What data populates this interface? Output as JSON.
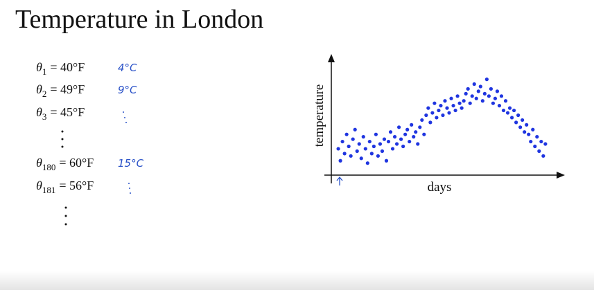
{
  "header": {
    "title": "Temperature in London"
  },
  "equations": [
    {
      "symbol": "θ",
      "subscript": "1",
      "expression": "= 40°F",
      "note": "4°C"
    },
    {
      "symbol": "θ",
      "subscript": "2",
      "expression": "= 49°F",
      "note": "9°C"
    },
    {
      "symbol": "θ",
      "subscript": "3",
      "expression": "= 45°F"
    },
    {
      "symbol": "θ",
      "subscript": "180",
      "expression": "= 60°F",
      "note": "15°C"
    },
    {
      "symbol": "θ",
      "subscript": "181",
      "expression": "= 56°F"
    }
  ],
  "chart_data": {
    "type": "scatter",
    "x_label": "days",
    "y_label": "temperature",
    "color": "#1f35e0",
    "xlim": [
      0,
      330
    ],
    "ylim": [
      30,
      80
    ],
    "x": [
      10,
      13,
      16,
      19,
      22,
      25,
      28,
      31,
      34,
      37,
      40,
      43,
      46,
      49,
      52,
      55,
      58,
      61,
      64,
      67,
      70,
      73,
      76,
      79,
      82,
      85,
      88,
      91,
      94,
      97,
      100,
      103,
      106,
      109,
      112,
      115,
      118,
      121,
      124,
      127,
      130,
      133,
      136,
      139,
      142,
      145,
      148,
      151,
      154,
      157,
      160,
      163,
      166,
      169,
      172,
      175,
      178,
      181,
      184,
      187,
      190,
      193,
      196,
      199,
      202,
      205,
      208,
      211,
      214,
      217,
      220,
      223,
      226,
      229,
      232,
      235,
      238,
      241,
      244,
      247,
      250,
      253,
      256,
      259,
      262,
      265,
      268,
      271,
      274,
      277,
      280,
      283,
      286,
      289,
      292,
      295,
      298,
      301,
      304,
      307
    ],
    "values": [
      41,
      36,
      44,
      39,
      47,
      42,
      38,
      45,
      49,
      40,
      43,
      37,
      46,
      41,
      35,
      44,
      39,
      42,
      47,
      38,
      43,
      40,
      45,
      36,
      44,
      48,
      41,
      46,
      43,
      50,
      45,
      42,
      47,
      49,
      44,
      51,
      46,
      48,
      43,
      50,
      53,
      47,
      55,
      58,
      52,
      56,
      60,
      54,
      57,
      59,
      55,
      61,
      58,
      56,
      62,
      59,
      57,
      63,
      60,
      58,
      61,
      64,
      66,
      60,
      63,
      68,
      62,
      65,
      67,
      61,
      64,
      70,
      63,
      66,
      60,
      62,
      65,
      59,
      63,
      57,
      61,
      56,
      58,
      54,
      57,
      52,
      55,
      50,
      53,
      48,
      51,
      47,
      44,
      49,
      42,
      46,
      40,
      44,
      38,
      43
    ]
  }
}
